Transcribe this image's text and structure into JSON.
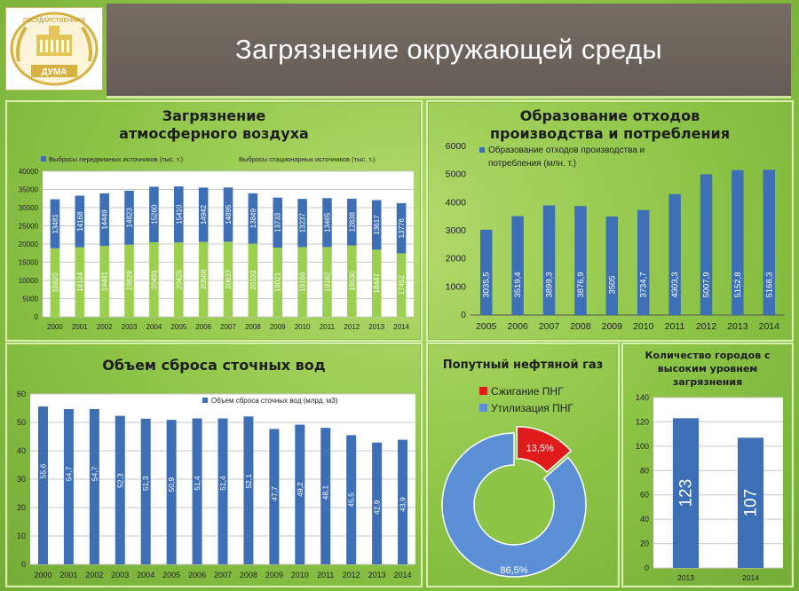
{
  "header": {
    "logo_text_top": "ГОСУДАРСТВЕННАЯ",
    "logo_text_bottom": "ДУМА",
    "title": "Загрязнение окружающей среды"
  },
  "panels": {
    "air": {
      "title_line1": "Загрязнение",
      "title_line2": "атмосферного воздуха"
    },
    "waste": {
      "title_line1": "Образование отходов",
      "title_line2": "производства и потребления"
    },
    "water": {
      "title": "Объем сброса сточных вод"
    },
    "gas": {
      "title": "Попутный нефтяной газ"
    },
    "cities": {
      "title_line1": "Количество городов с",
      "title_line2": "высоким уровнем",
      "title_line3": "загрязнения"
    }
  },
  "chart_data": [
    {
      "id": "air",
      "type": "bar",
      "stacked": true,
      "categories": [
        "2000",
        "2001",
        "2002",
        "2003",
        "2004",
        "2005",
        "2006",
        "2007",
        "2008",
        "2009",
        "2010",
        "2011",
        "2012",
        "2013",
        "2014"
      ],
      "series": [
        {
          "name": "Выбросы стационарных источников (тыс. т.)",
          "color": "#9bd04f",
          "values": [
            18820,
            19124,
            19481,
            19829,
            20491,
            20425,
            20568,
            20637,
            20103,
            19021,
            19166,
            19162,
            19630,
            18447,
            17452
          ]
        },
        {
          "name": "Выбросы передвижных источников (тыс. т.)",
          "color": "#3d6fb6",
          "values": [
            13481,
            14168,
            14449,
            14823,
            15260,
            15410,
            14942,
            14895,
            13849,
            13733,
            13237,
            13465,
            12838,
            13617,
            13776
          ]
        }
      ],
      "legend_order": [
        1,
        0
      ],
      "yticks": [
        "0",
        "5000",
        "10000",
        "15000",
        "20000",
        "25000",
        "30000",
        "35000",
        "40000"
      ],
      "ylim": [
        0,
        40000
      ],
      "grid": true,
      "legend": "top"
    },
    {
      "id": "waste",
      "type": "bar",
      "categories": [
        "2005",
        "2006",
        "2007",
        "2008",
        "2009",
        "2010",
        "2011",
        "2012",
        "2013",
        "2014"
      ],
      "series": [
        {
          "name": "Образование отходов производства и потребления (млн. т.)",
          "color": "#3d6fb6",
          "values": [
            3035.5,
            3519.4,
            3899.3,
            3876.9,
            3505,
            3734.7,
            4303.3,
            5007.9,
            5152.8,
            5168.3
          ],
          "labels": [
            "3035,5",
            "3519,4",
            "3899,3",
            "3876,9",
            "3505",
            "3734,7",
            "4303,3",
            "5007,9",
            "5152,8",
            "5168,3"
          ]
        }
      ],
      "yticks": [
        "0",
        "1000",
        "2000",
        "3000",
        "4000",
        "5000",
        "6000"
      ],
      "ylim": [
        0,
        6000
      ],
      "grid": false,
      "legend": "top-left"
    },
    {
      "id": "water",
      "type": "bar",
      "categories": [
        "2000",
        "2001",
        "2002",
        "2003",
        "2004",
        "2005",
        "2006",
        "2007",
        "2008",
        "2009",
        "2010",
        "2011",
        "2012",
        "2013",
        "2014"
      ],
      "series": [
        {
          "name": "Объем сброса сточных вод (млрд. м3)",
          "color": "#3d6fb6",
          "values": [
            55.6,
            54.7,
            54.7,
            52.3,
            51.3,
            50.9,
            51.4,
            51.4,
            52.1,
            47.7,
            49.2,
            48.1,
            45.5,
            42.9,
            43.9
          ],
          "labels": [
            "55,6",
            "54,7",
            "54,7",
            "52,3",
            "51,3",
            "50,9",
            "51,4",
            "51,4",
            "52,1",
            "47,7",
            "49,2",
            "48,1",
            "45,5",
            "42,9",
            "43,9"
          ]
        }
      ],
      "yticks": [
        "0",
        "10",
        "20",
        "30",
        "40",
        "50",
        "60"
      ],
      "ylim": [
        0,
        60
      ],
      "grid": true,
      "legend": "top"
    },
    {
      "id": "gas",
      "type": "pie",
      "donut": true,
      "slices": [
        {
          "name": "Сжигание ПНГ",
          "value": 13.5,
          "label": "13,5%",
          "color": "#e01b1b"
        },
        {
          "name": "Утилизация ПНГ",
          "value": 86.5,
          "label": "86,5%",
          "color": "#5b8fd6"
        }
      ],
      "legend": "top"
    },
    {
      "id": "cities",
      "type": "bar",
      "categories": [
        "2013",
        "2014"
      ],
      "series": [
        {
          "color": "#3d6fb6",
          "values": [
            123,
            107
          ],
          "labels": [
            "123",
            "107"
          ]
        }
      ],
      "yticks": [
        "0",
        "20",
        "40",
        "60",
        "80",
        "100",
        "120",
        "140"
      ],
      "ylim": [
        0,
        140
      ],
      "grid": true
    }
  ]
}
